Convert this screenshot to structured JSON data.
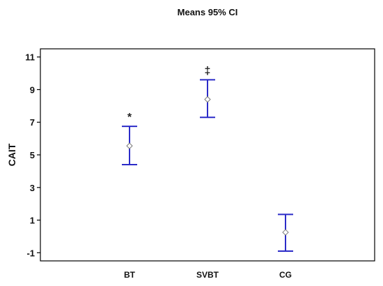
{
  "chart_data": {
    "type": "scatter",
    "title": "Means 95% CI",
    "ylabel": "CAIT",
    "xlabel": "",
    "ylim": [
      -1.5,
      11.5
    ],
    "yticks": [
      -1,
      1,
      3,
      5,
      7,
      9,
      11
    ],
    "categories": [
      "BT",
      "SVBT",
      "CG"
    ],
    "means": [
      5.55,
      8.4,
      0.25
    ],
    "ci_lower": [
      4.4,
      7.3,
      -0.9
    ],
    "ci_upper": [
      6.75,
      9.6,
      1.35
    ],
    "annotations": [
      "*",
      "‡",
      ""
    ],
    "grid": false,
    "legend": "none",
    "colors": {
      "error_bar": "#2b2bc8",
      "mean_marker": "#7a7a7a",
      "axis": "#000000"
    }
  }
}
